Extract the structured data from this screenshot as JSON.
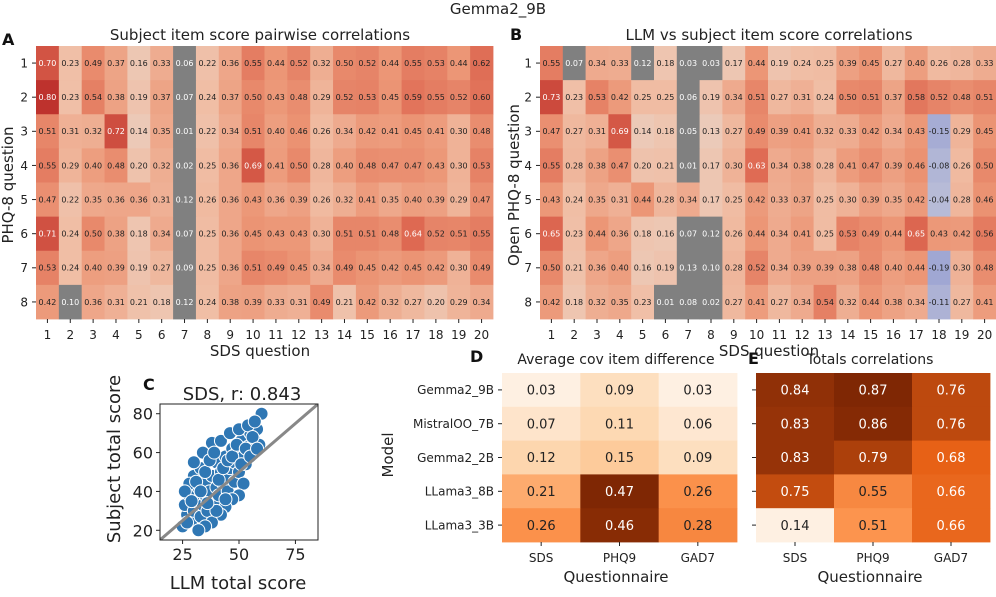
{
  "suptitle": "Gemma2_9B",
  "panels": {
    "A": {
      "letter": "A",
      "title": "Subject item score pairwise correlations",
      "xlabel": "SDS question",
      "ylabel": "PHQ-8 question"
    },
    "B": {
      "letter": "B",
      "title": "LLM vs subject item score correlations",
      "xlabel": "SDS question",
      "ylabel": "Open PHQ-8 question"
    },
    "C": {
      "letter": "C",
      "title": "SDS, r: 0.843",
      "xlabel": "LLM total score",
      "ylabel": "Subject total score"
    },
    "D": {
      "letter": "D",
      "title": "Average cov item difference",
      "xlabel": "Questionnaire",
      "ylabel": "Model"
    },
    "E": {
      "letter": "E",
      "title": "Totals correlations",
      "xlabel": "Questionnaire"
    }
  },
  "chart_data": [
    {
      "panel": "A",
      "type": "heatmap",
      "x_ticks": [
        "1",
        "2",
        "3",
        "4",
        "5",
        "6",
        "7",
        "8",
        "9",
        "10",
        "11",
        "12",
        "13",
        "14",
        "15",
        "16",
        "17",
        "18",
        "19",
        "20"
      ],
      "y_ticks": [
        "1",
        "2",
        "3",
        "4",
        "5",
        "6",
        "7",
        "8"
      ],
      "values": [
        [
          0.7,
          0.23,
          0.49,
          0.37,
          0.16,
          0.33,
          0.06,
          0.22,
          0.36,
          0.55,
          0.44,
          0.52,
          0.32,
          0.5,
          0.52,
          0.44,
          0.55,
          0.53,
          0.44,
          0.62
        ],
        [
          0.8,
          0.23,
          0.54,
          0.38,
          0.19,
          0.37,
          0.07,
          0.24,
          0.37,
          0.5,
          0.43,
          0.48,
          0.29,
          0.52,
          0.53,
          0.45,
          0.59,
          0.55,
          0.52,
          0.6
        ],
        [
          0.51,
          0.31,
          0.32,
          0.72,
          0.14,
          0.35,
          0.01,
          0.22,
          0.34,
          0.51,
          0.4,
          0.46,
          0.26,
          0.34,
          0.42,
          0.41,
          0.45,
          0.41,
          0.3,
          0.48
        ],
        [
          0.55,
          0.29,
          0.4,
          0.48,
          0.2,
          0.32,
          0.02,
          0.25,
          0.36,
          0.69,
          0.41,
          0.5,
          0.28,
          0.4,
          0.48,
          0.47,
          0.47,
          0.43,
          0.3,
          0.53
        ],
        [
          0.47,
          0.22,
          0.35,
          0.36,
          0.36,
          0.31,
          0.12,
          0.26,
          0.36,
          0.43,
          0.36,
          0.39,
          0.26,
          0.32,
          0.41,
          0.35,
          0.4,
          0.39,
          0.29,
          0.47
        ],
        [
          0.71,
          0.24,
          0.5,
          0.38,
          0.18,
          0.34,
          0.07,
          0.25,
          0.36,
          0.45,
          0.43,
          0.43,
          0.3,
          0.51,
          0.51,
          0.48,
          0.64,
          0.52,
          0.51,
          0.55
        ],
        [
          0.53,
          0.24,
          0.4,
          0.39,
          0.19,
          0.27,
          0.09,
          0.25,
          0.36,
          0.51,
          0.49,
          0.45,
          0.34,
          0.49,
          0.45,
          0.42,
          0.45,
          0.42,
          0.3,
          0.49
        ],
        [
          0.42,
          0.1,
          0.36,
          0.31,
          0.21,
          0.18,
          0.12,
          0.24,
          0.38,
          0.39,
          0.33,
          0.31,
          0.49,
          0.21,
          0.42,
          0.32,
          0.27,
          0.2,
          0.29,
          0.34
        ]
      ]
    },
    {
      "panel": "B",
      "type": "heatmap",
      "x_ticks": [
        "1",
        "2",
        "3",
        "4",
        "5",
        "6",
        "7",
        "8",
        "9",
        "10",
        "11",
        "12",
        "13",
        "14",
        "15",
        "16",
        "17",
        "18",
        "19",
        "20"
      ],
      "y_ticks": [
        "1",
        "2",
        "3",
        "4",
        "5",
        "6",
        "7",
        "8"
      ],
      "values": [
        [
          0.55,
          0.07,
          0.34,
          0.33,
          0.12,
          0.18,
          0.03,
          0.03,
          0.17,
          0.44,
          0.19,
          0.24,
          0.25,
          0.39,
          0.45,
          0.27,
          0.4,
          0.26,
          0.28,
          0.33
        ],
        [
          0.73,
          0.23,
          0.53,
          0.42,
          0.25,
          0.25,
          0.06,
          0.19,
          0.34,
          0.51,
          0.27,
          0.31,
          0.24,
          0.5,
          0.51,
          0.37,
          0.58,
          0.52,
          0.48,
          0.51
        ],
        [
          0.47,
          0.27,
          0.31,
          0.69,
          0.14,
          0.18,
          0.05,
          0.13,
          0.27,
          0.49,
          0.39,
          0.41,
          0.32,
          0.33,
          0.42,
          0.34,
          0.43,
          -0.15,
          0.29,
          0.45
        ],
        [
          0.55,
          0.28,
          0.38,
          0.47,
          0.2,
          0.21,
          0.01,
          0.17,
          0.3,
          0.63,
          0.34,
          0.38,
          0.28,
          0.41,
          0.47,
          0.39,
          0.46,
          -0.08,
          0.26,
          0.5
        ],
        [
          0.43,
          0.24,
          0.35,
          0.31,
          0.44,
          0.28,
          0.34,
          0.17,
          0.25,
          0.42,
          0.33,
          0.37,
          0.25,
          0.3,
          0.39,
          0.35,
          0.42,
          -0.04,
          0.28,
          0.46
        ],
        [
          0.65,
          0.23,
          0.44,
          0.36,
          0.18,
          0.16,
          0.07,
          0.12,
          0.26,
          0.44,
          0.34,
          0.41,
          0.25,
          0.53,
          0.49,
          0.44,
          0.65,
          0.43,
          0.42,
          0.56
        ],
        [
          0.5,
          0.21,
          0.36,
          0.4,
          0.16,
          0.19,
          0.13,
          0.1,
          0.28,
          0.52,
          0.34,
          0.39,
          0.39,
          0.38,
          0.48,
          0.4,
          0.44,
          -0.19,
          0.3,
          0.48
        ],
        [
          0.42,
          0.18,
          0.32,
          0.35,
          0.23,
          0.01,
          0.08,
          0.02,
          0.27,
          0.41,
          0.27,
          0.34,
          0.54,
          0.32,
          0.44,
          0.38,
          0.34,
          -0.11,
          0.27,
          0.41
        ]
      ],
      "grey_cells": [
        [
          0,
          1
        ],
        [
          0,
          6
        ],
        [
          0,
          7
        ],
        [
          1,
          6
        ],
        [
          2,
          6
        ],
        [
          3,
          6
        ],
        [
          5,
          6
        ],
        [
          5,
          7
        ],
        [
          6,
          6
        ],
        [
          6,
          7
        ],
        [
          7,
          5
        ],
        [
          7,
          6
        ],
        [
          7,
          7
        ]
      ]
    },
    {
      "panel": "C",
      "type": "scatter",
      "xlim": [
        15,
        85
      ],
      "ylim": [
        15,
        85
      ],
      "x_ticks": [
        "25",
        "50",
        "75"
      ],
      "x_tick_values": [
        25,
        50,
        75
      ],
      "y_ticks": [
        "20",
        "40",
        "60",
        "80"
      ],
      "y_tick_values": [
        20,
        40,
        60,
        80
      ],
      "point_color": "#2f77b4",
      "line_color": "#888888",
      "points": [
        [
          25,
          22
        ],
        [
          27,
          28
        ],
        [
          26,
          33
        ],
        [
          29,
          25
        ],
        [
          30,
          30
        ],
        [
          28,
          38
        ],
        [
          31,
          35
        ],
        [
          33,
          27
        ],
        [
          32,
          42
        ],
        [
          34,
          33
        ],
        [
          35,
          38
        ],
        [
          36,
          45
        ],
        [
          30,
          48
        ],
        [
          33,
          52
        ],
        [
          36,
          30
        ],
        [
          37,
          40
        ],
        [
          38,
          48
        ],
        [
          39,
          35
        ],
        [
          40,
          42
        ],
        [
          40,
          55
        ],
        [
          41,
          38
        ],
        [
          42,
          50
        ],
        [
          43,
          44
        ],
        [
          44,
          58
        ],
        [
          45,
          40
        ],
        [
          45,
          48
        ],
        [
          46,
          52
        ],
        [
          47,
          62
        ],
        [
          48,
          45
        ],
        [
          48,
          55
        ],
        [
          49,
          60
        ],
        [
          50,
          50
        ],
        [
          51,
          66
        ],
        [
          52,
          58
        ],
        [
          53,
          54
        ],
        [
          54,
          63
        ],
        [
          55,
          70
        ],
        [
          56,
          60
        ],
        [
          57,
          66
        ],
        [
          58,
          72
        ],
        [
          60,
          80
        ],
        [
          59,
          64
        ],
        [
          52,
          44
        ],
        [
          50,
          38
        ],
        [
          47,
          36
        ],
        [
          44,
          32
        ],
        [
          42,
          28
        ],
        [
          38,
          24
        ],
        [
          35,
          22
        ],
        [
          32,
          20
        ],
        [
          28,
          44
        ],
        [
          30,
          55
        ],
        [
          34,
          60
        ],
        [
          38,
          65
        ],
        [
          42,
          66
        ],
        [
          46,
          70
        ],
        [
          50,
          72
        ],
        [
          54,
          74
        ],
        [
          57,
          76
        ],
        [
          26,
          40
        ],
        [
          29,
          35
        ],
        [
          31,
          45
        ],
        [
          35,
          50
        ],
        [
          37,
          56
        ],
        [
          39,
          60
        ],
        [
          41,
          46
        ],
        [
          43,
          52
        ],
        [
          45,
          56
        ],
        [
          47,
          58
        ],
        [
          49,
          64
        ],
        [
          51,
          54
        ],
        [
          53,
          62
        ],
        [
          55,
          58
        ],
        [
          56,
          68
        ],
        [
          58,
          62
        ],
        [
          40,
          30
        ],
        [
          36,
          34
        ],
        [
          33,
          40
        ],
        [
          27,
          24
        ],
        [
          44,
          36
        ]
      ]
    },
    {
      "panel": "D",
      "type": "heatmap",
      "x_ticks": [
        "SDS",
        "PHQ9",
        "GAD7"
      ],
      "y_ticks": [
        "Gemma2_9B",
        "MistralOO_7B",
        "Gemma2_2B",
        "LLama3_8B",
        "LLama3_3B"
      ],
      "values": [
        [
          0.03,
          0.09,
          0.03
        ],
        [
          0.07,
          0.11,
          0.06
        ],
        [
          0.12,
          0.15,
          0.09
        ],
        [
          0.21,
          0.47,
          0.26
        ],
        [
          0.26,
          0.46,
          0.28
        ]
      ]
    },
    {
      "panel": "E",
      "type": "heatmap",
      "x_ticks": [
        "SDS",
        "PHQ9",
        "GAD7"
      ],
      "y_ticks": [
        "",
        "",
        "",
        "",
        ""
      ],
      "values": [
        [
          0.84,
          0.87,
          0.76
        ],
        [
          0.83,
          0.86,
          0.76
        ],
        [
          0.83,
          0.79,
          0.68
        ],
        [
          0.75,
          0.55,
          0.66
        ],
        [
          0.14,
          0.51,
          0.66
        ]
      ]
    }
  ]
}
